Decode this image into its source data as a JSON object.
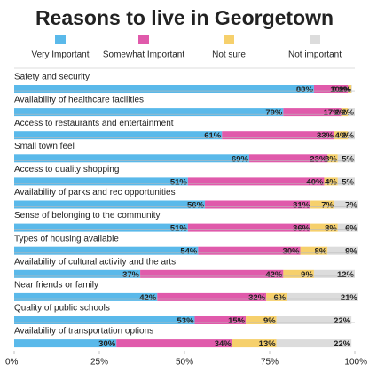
{
  "chart_data": {
    "type": "stacked-bar-horizontal",
    "title": "Reasons to live in Georgetown",
    "categories": [
      "Safety and security",
      "Availability of healthcare facilities",
      "Access to restaurants and entertainment",
      "Small town feel",
      "Access to quality shopping",
      "Availability of parks and rec opportunities",
      "Sense of belonging to the community",
      "Types of housing available",
      "Availability of cultural activity and the arts",
      "Near friends or family",
      "Quality of public schools",
      "Availability of transportation options"
    ],
    "series": [
      {
        "name": "Very Important",
        "color": "#5ab9ea",
        "values": [
          88,
          79,
          61,
          69,
          51,
          56,
          51,
          54,
          37,
          42,
          53,
          30
        ],
        "value_labels": [
          "88%",
          "79%",
          "61%",
          "69%",
          "51%",
          "56%",
          "51%",
          "54%",
          "37%",
          "42%",
          "53%",
          "30%"
        ]
      },
      {
        "name": "Somewhat Important",
        "color": "#e05aab",
        "values": [
          10,
          17,
          33,
          23,
          40,
          31,
          36,
          30,
          42,
          32,
          15,
          34
        ],
        "value_labels": [
          "10%",
          "17%",
          "33%",
          "23%",
          "40%",
          "31%",
          "36%",
          "30%",
          "42%",
          "32%",
          "15%",
          "34%"
        ]
      },
      {
        "name": "Not sure",
        "color": "#f6d06c",
        "values": [
          1,
          2,
          4,
          3,
          4,
          7,
          8,
          8,
          9,
          6,
          9,
          13
        ],
        "value_labels": [
          "1%",
          "2%",
          "4%",
          "3%",
          "4%",
          "7%",
          "8%",
          "8%",
          "9%",
          "6%",
          "9%",
          "13%"
        ]
      },
      {
        "name": "Not important",
        "color": "#dcdcdc",
        "values": [
          0.2,
          2,
          2,
          5,
          5,
          7,
          6,
          9,
          12,
          21,
          22,
          22
        ],
        "value_labels": [
          "0.2%",
          "2%",
          "2%",
          "5%",
          "5%",
          "7%",
          "6%",
          "9%",
          "12%",
          "21%",
          "22%",
          "22%"
        ]
      }
    ],
    "xlim": [
      0,
      100
    ],
    "xticks": [
      {
        "value": 0,
        "label": "0%"
      },
      {
        "value": 25,
        "label": "25%"
      },
      {
        "value": 50,
        "label": "50%"
      },
      {
        "value": 75,
        "label": "75%"
      },
      {
        "value": 100,
        "label": "100%"
      }
    ]
  }
}
